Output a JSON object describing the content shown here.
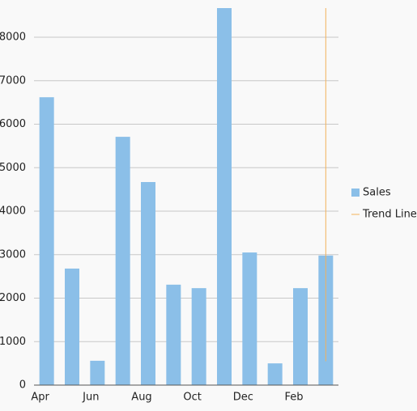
{
  "chart_data": {
    "type": "bar",
    "categories": [
      "Apr",
      null,
      "Jun",
      null,
      "Aug",
      null,
      "Oct",
      null,
      "Dec",
      null,
      "Feb",
      null
    ],
    "series": [
      {
        "name": "Sales",
        "color": "#8bbfe8",
        "values": [
          6620,
          2680,
          560,
          5710,
          4670,
          2310,
          2230,
          8670,
          3050,
          500,
          2230,
          2980
        ]
      }
    ],
    "trend_line": {
      "name": "Trend Line",
      "color": "#f2b25c",
      "values": [
        8670,
        550
      ]
    },
    "ylim": [
      0,
      8670
    ],
    "yticks": [
      0,
      1000,
      2000,
      3000,
      4000,
      5000,
      6000,
      7000,
      8000
    ],
    "grid": true,
    "legend": "right"
  }
}
